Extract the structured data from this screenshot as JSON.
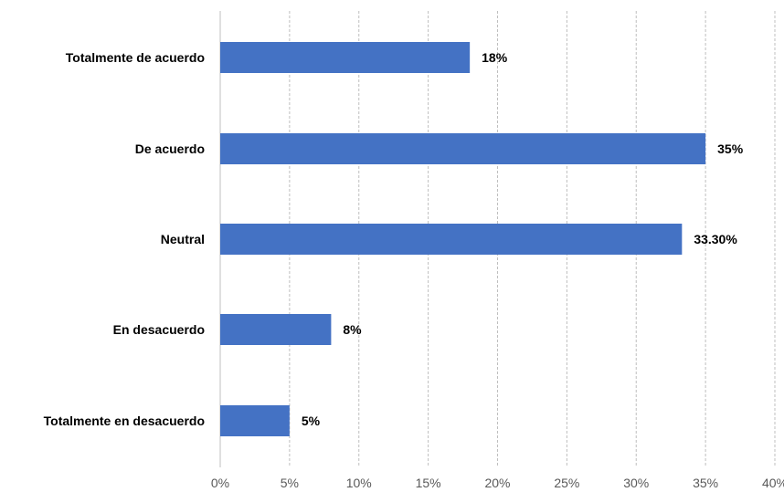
{
  "chart_data": {
    "type": "bar",
    "orientation": "horizontal",
    "categories": [
      "Totalmente de acuerdo",
      "De acuerdo",
      "Neutral",
      "En desacuerdo",
      "Totalmente en desacuerdo"
    ],
    "values": [
      18,
      35,
      33.3,
      8,
      5
    ],
    "data_labels": [
      "18%",
      "35%",
      "33.30%",
      "8%",
      "5%"
    ],
    "x_ticks": [
      "0%",
      "5%",
      "10%",
      "15%",
      "20%",
      "25%",
      "30%",
      "35%",
      "40%"
    ],
    "xlim": [
      0,
      40
    ],
    "xlabel": "",
    "ylabel": "",
    "title": "",
    "grid": true,
    "legend": "none",
    "bar_color": "#4472c4"
  }
}
